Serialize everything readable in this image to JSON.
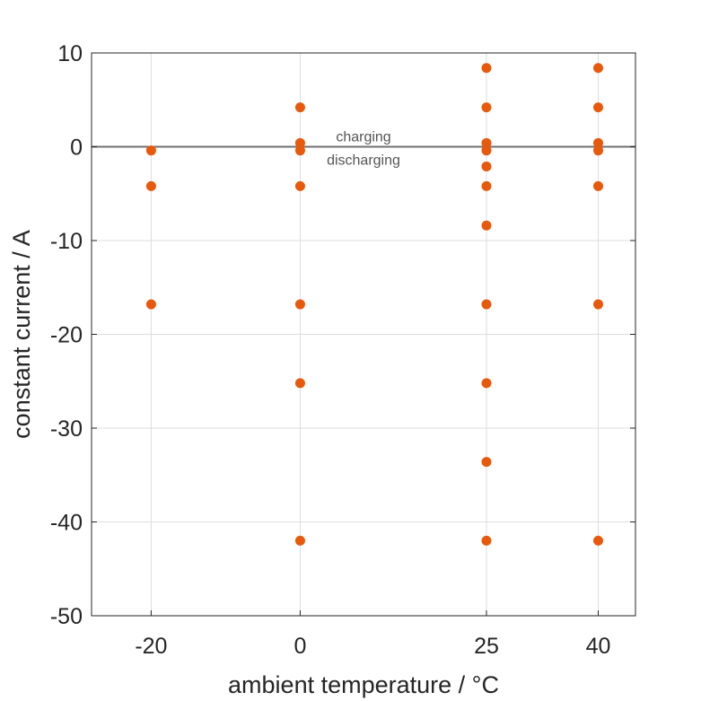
{
  "chart_data": {
    "type": "scatter",
    "xlabel": "ambient temperature / °C",
    "ylabel": "constant current / A",
    "xlim": [
      -28,
      45
    ],
    "ylim": [
      -50,
      10
    ],
    "xticks": [
      -20,
      0,
      25,
      40
    ],
    "yticks": [
      10,
      0,
      -10,
      -20,
      -30,
      -40,
      -50
    ],
    "grid": true,
    "reference_line_y": 0,
    "annotations": [
      "charging",
      "discharging"
    ],
    "marker_color": "#e8590c",
    "line_color": "#707070",
    "points": [
      {
        "x": -20,
        "y": -0.4
      },
      {
        "x": -20,
        "y": -4.2
      },
      {
        "x": -20,
        "y": -16.8
      },
      {
        "x": 0,
        "y": 4.2
      },
      {
        "x": 0,
        "y": 0.4
      },
      {
        "x": 0,
        "y": -0.4
      },
      {
        "x": 0,
        "y": -4.2
      },
      {
        "x": 0,
        "y": -16.8
      },
      {
        "x": 0,
        "y": -25.2
      },
      {
        "x": 0,
        "y": -42
      },
      {
        "x": 25,
        "y": 8.4
      },
      {
        "x": 25,
        "y": 4.2
      },
      {
        "x": 25,
        "y": 0.4
      },
      {
        "x": 25,
        "y": -0.4
      },
      {
        "x": 25,
        "y": -2.1
      },
      {
        "x": 25,
        "y": -4.2
      },
      {
        "x": 25,
        "y": -8.4
      },
      {
        "x": 25,
        "y": -16.8
      },
      {
        "x": 25,
        "y": -25.2
      },
      {
        "x": 25,
        "y": -33.6
      },
      {
        "x": 25,
        "y": -42
      },
      {
        "x": 40,
        "y": 8.4
      },
      {
        "x": 40,
        "y": 4.2
      },
      {
        "x": 40,
        "y": 0.4
      },
      {
        "x": 40,
        "y": -0.4
      },
      {
        "x": 40,
        "y": -4.2
      },
      {
        "x": 40,
        "y": -16.8
      },
      {
        "x": 40,
        "y": -42
      }
    ]
  }
}
